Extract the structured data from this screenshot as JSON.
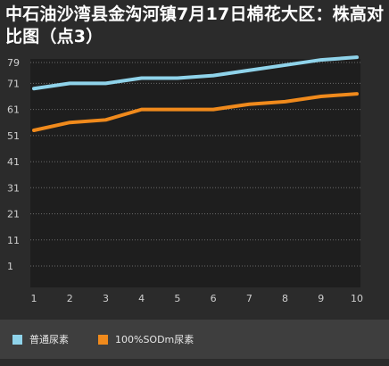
{
  "title": "中石油沙湾县金沟河镇7月17日棉花大区：株高对比图（点3）",
  "colors": {
    "background": "#2b2b2b",
    "plot_background": "#1e1e1e",
    "legend_band": "#3e3e3e",
    "series1": "#8fd3ea",
    "series2": "#f08a1c"
  },
  "chart_data": {
    "type": "line",
    "title": "中石油沙湾县金沟河镇7月17日棉花大区：株高对比图（点3）",
    "x": [
      1,
      2,
      3,
      4,
      5,
      6,
      7,
      8,
      9,
      10
    ],
    "y_ticks": [
      1,
      11,
      21,
      31,
      41,
      51,
      61,
      71,
      79
    ],
    "ylim": [
      1,
      79
    ],
    "grid": true,
    "legend_position": "bottom-left",
    "series": [
      {
        "name": "普通尿素",
        "color": "#8fd3ea",
        "values": [
          69,
          71,
          71,
          73,
          73,
          74,
          76,
          78,
          80,
          81
        ]
      },
      {
        "name": "100%SODm尿素",
        "color": "#f08a1c",
        "values": [
          53,
          56,
          57,
          61,
          61,
          61,
          63,
          64,
          66,
          67
        ]
      }
    ]
  }
}
